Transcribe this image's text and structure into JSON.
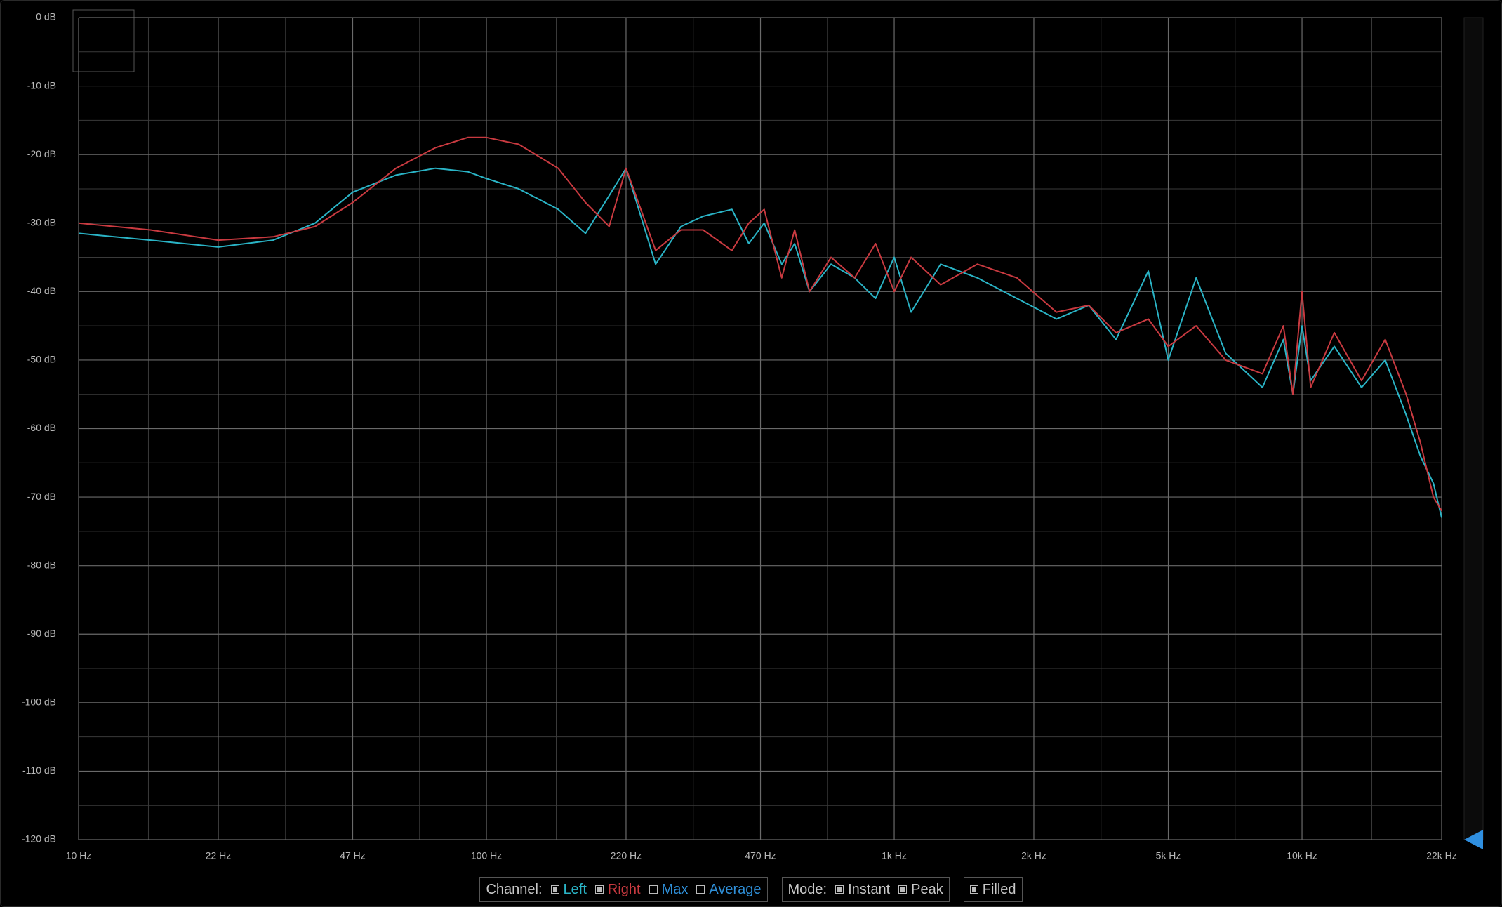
{
  "chart_data": {
    "type": "line",
    "log_x": true,
    "grid": true,
    "x": [
      10,
      15,
      22,
      30,
      38,
      47,
      60,
      75,
      90,
      100,
      120,
      150,
      175,
      200,
      220,
      260,
      300,
      340,
      400,
      440,
      480,
      530,
      570,
      620,
      700,
      800,
      900,
      1000,
      1100,
      1300,
      1600,
      2000,
      2500,
      3000,
      3500,
      4200,
      4700,
      5500,
      6500,
      8000,
      9000,
      9500,
      10000,
      10500,
      12000,
      14000,
      16000,
      18000,
      19500,
      21000,
      22000
    ],
    "series": [
      {
        "name": "Left",
        "color": "#2ab4c6",
        "checked": true,
        "values": [
          -31.5,
          -32.5,
          -33.5,
          -32.5,
          -30,
          -25.5,
          -23,
          -22,
          -22.5,
          -23.5,
          -25,
          -28,
          -31.5,
          -26,
          -22,
          -36,
          -30.5,
          -29,
          -28,
          -33,
          -30,
          -36,
          -33,
          -40,
          -36,
          -38,
          -41,
          -35,
          -43,
          -36,
          -38,
          -41,
          -44,
          -42,
          -47,
          -37,
          -50,
          -38,
          -49,
          -54,
          -47,
          -55,
          -45,
          -53,
          -48,
          -54,
          -50,
          -58,
          -64,
          -68,
          -73
        ]
      },
      {
        "name": "Right",
        "color": "#c93a40",
        "checked": true,
        "values": [
          -30,
          -31,
          -32.5,
          -32,
          -30.5,
          -27,
          -22,
          -19,
          -17.5,
          -17.5,
          -18.5,
          -22,
          -27,
          -30.5,
          -22,
          -34,
          -31,
          -31,
          -34,
          -30,
          -28,
          -38,
          -31,
          -40,
          -35,
          -38,
          -33,
          -40,
          -35,
          -39,
          -36,
          -38,
          -43,
          -42,
          -46,
          -44,
          -48,
          -45,
          -50,
          -52,
          -45,
          -55,
          -40,
          -54,
          -46,
          -53,
          -47,
          -55,
          -62,
          -70,
          -72
        ]
      }
    ],
    "xlim": [
      10,
      22000
    ],
    "xticks": [
      {
        "value": 10,
        "label": "10 Hz"
      },
      {
        "value": 22,
        "label": "22 Hz"
      },
      {
        "value": 47,
        "label": "47 Hz"
      },
      {
        "value": 100,
        "label": "100 Hz"
      },
      {
        "value": 220,
        "label": "220 Hz"
      },
      {
        "value": 470,
        "label": "470 Hz"
      },
      {
        "value": 1000,
        "label": "1k Hz"
      },
      {
        "value": 2200,
        "label": "2k Hz"
      },
      {
        "value": 4700,
        "label": "5k Hz"
      },
      {
        "value": 10000,
        "label": "10k Hz"
      },
      {
        "value": 22000,
        "label": "22k Hz"
      }
    ],
    "ylim": [
      -120,
      0
    ],
    "yticks": [
      {
        "value": 0,
        "label": "0 dB"
      },
      {
        "value": -10,
        "label": "-10 dB"
      },
      {
        "value": -20,
        "label": "-20 dB"
      },
      {
        "value": -30,
        "label": "-30 dB"
      },
      {
        "value": -40,
        "label": "-40 dB"
      },
      {
        "value": -50,
        "label": "-50 dB"
      },
      {
        "value": -60,
        "label": "-60 dB"
      },
      {
        "value": -70,
        "label": "-70 dB"
      },
      {
        "value": -80,
        "label": "-80 dB"
      },
      {
        "value": -90,
        "label": "-90 dB"
      },
      {
        "value": -100,
        "label": "-100 dB"
      },
      {
        "value": -110,
        "label": "-110 dB"
      },
      {
        "value": -120,
        "label": "-120 dB"
      }
    ]
  },
  "controls": {
    "channel_label": "Channel:",
    "extra_channels": [
      {
        "label": "Max",
        "color": "#2f8fd8",
        "checked": false
      },
      {
        "label": "Average",
        "color": "#2f8fd8",
        "checked": false
      }
    ],
    "mode_label": "Mode:",
    "modes": [
      {
        "label": "Instant",
        "checked": true
      },
      {
        "label": "Peak",
        "checked": true
      }
    ],
    "filled": {
      "label": "Filled",
      "checked": true
    }
  }
}
